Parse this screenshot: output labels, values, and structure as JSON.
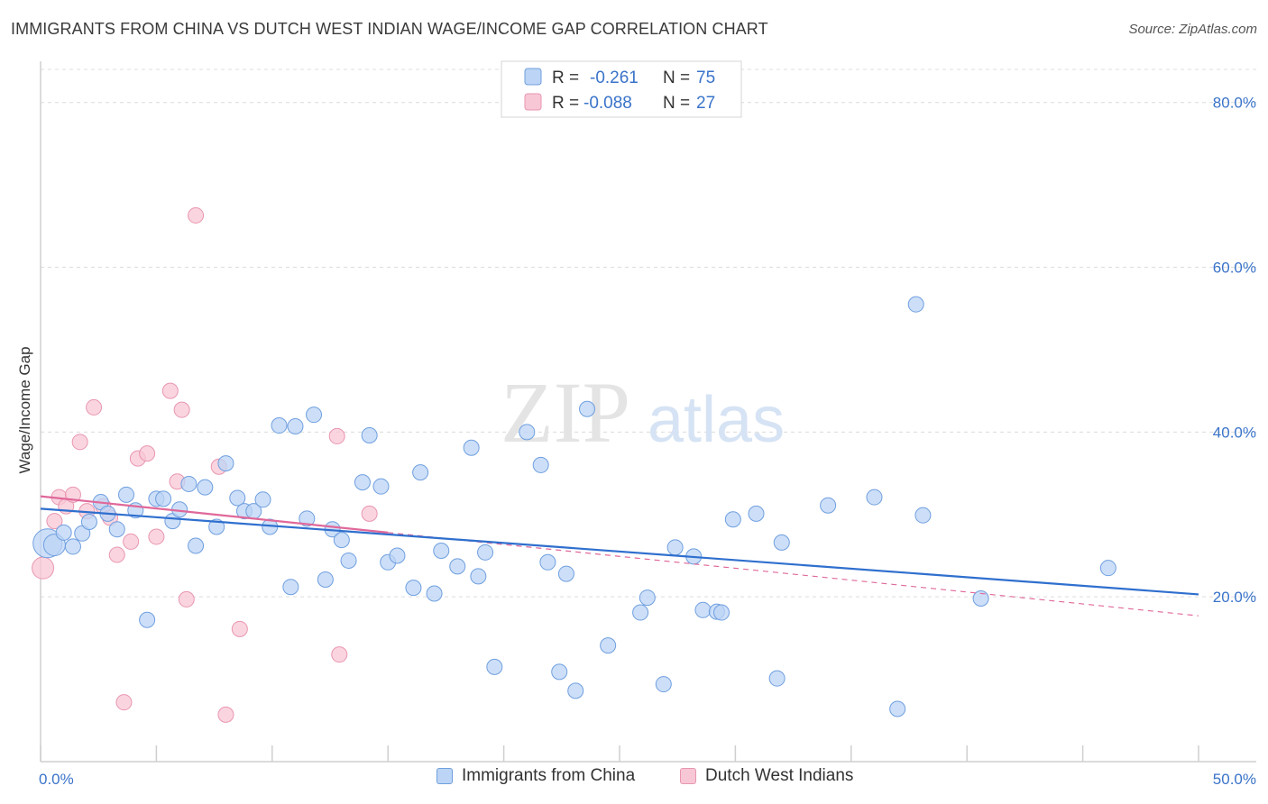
{
  "header": {
    "title": "IMMIGRANTS FROM CHINA VS DUTCH WEST INDIAN WAGE/INCOME GAP CORRELATION CHART",
    "source": "Source: ZipAtlas.com"
  },
  "watermark": {
    "zip": "ZIP",
    "atlas": "atlas"
  },
  "colors": {
    "china_fill": "#bcd4f5",
    "china_stroke": "#6f9fdf",
    "china_line": "#2f6fce",
    "dutch_fill": "#f8c7d6",
    "dutch_stroke": "#e996b0",
    "dutch_line": "#e0689a",
    "value_text": "#3a73c9",
    "grid": "#dcdcdc"
  },
  "stats": [
    {
      "r_label": "R =",
      "r_value": "-0.261",
      "n_label": "N =",
      "n_value": "75"
    },
    {
      "r_label": "R =",
      "r_value": "-0.088",
      "n_label": "N =",
      "n_value": "27"
    }
  ],
  "chart_data": {
    "type": "scatter",
    "ylabel": "Wage/Income Gap",
    "xlim": [
      0,
      50
    ],
    "ylim": [
      0,
      85
    ],
    "x_tick_labels": [
      "0.0%",
      "50.0%"
    ],
    "y_ticks": [
      20,
      40,
      60,
      80
    ],
    "y_tick_labels": [
      "20.0%",
      "40.0%",
      "60.0%",
      "80.0%"
    ],
    "grid": "horizontal dashed",
    "legend": "bottom-center",
    "series": [
      {
        "name": "Immigrants from China",
        "trend": {
          "x": [
            0,
            50
          ],
          "y": [
            30.7,
            20.3
          ]
        },
        "points": [
          {
            "x": 0.3,
            "y": 26.5,
            "s": 16
          },
          {
            "x": 0.6,
            "y": 26.3,
            "s": 12
          },
          {
            "x": 1.0,
            "y": 27.8
          },
          {
            "x": 1.4,
            "y": 26.1
          },
          {
            "x": 1.8,
            "y": 27.7
          },
          {
            "x": 2.1,
            "y": 29.1
          },
          {
            "x": 2.6,
            "y": 31.5
          },
          {
            "x": 2.9,
            "y": 30.1
          },
          {
            "x": 3.3,
            "y": 28.2
          },
          {
            "x": 3.7,
            "y": 32.4
          },
          {
            "x": 4.1,
            "y": 30.5
          },
          {
            "x": 4.6,
            "y": 17.2
          },
          {
            "x": 5.0,
            "y": 31.9
          },
          {
            "x": 5.3,
            "y": 31.9
          },
          {
            "x": 5.7,
            "y": 29.2
          },
          {
            "x": 6.0,
            "y": 30.6
          },
          {
            "x": 6.4,
            "y": 33.7
          },
          {
            "x": 6.7,
            "y": 26.2
          },
          {
            "x": 7.1,
            "y": 33.3
          },
          {
            "x": 7.6,
            "y": 28.5
          },
          {
            "x": 8.0,
            "y": 36.2
          },
          {
            "x": 8.5,
            "y": 32.0
          },
          {
            "x": 8.8,
            "y": 30.4
          },
          {
            "x": 9.2,
            "y": 30.4
          },
          {
            "x": 9.6,
            "y": 31.8
          },
          {
            "x": 9.9,
            "y": 28.5
          },
          {
            "x": 10.3,
            "y": 40.8
          },
          {
            "x": 10.8,
            "y": 21.2
          },
          {
            "x": 11.0,
            "y": 40.7
          },
          {
            "x": 11.5,
            "y": 29.5
          },
          {
            "x": 11.8,
            "y": 42.1
          },
          {
            "x": 12.3,
            "y": 22.1
          },
          {
            "x": 12.6,
            "y": 28.2
          },
          {
            "x": 13.0,
            "y": 26.9
          },
          {
            "x": 13.3,
            "y": 24.4
          },
          {
            "x": 13.9,
            "y": 33.9
          },
          {
            "x": 14.2,
            "y": 39.6
          },
          {
            "x": 14.7,
            "y": 33.4
          },
          {
            "x": 15.0,
            "y": 24.2
          },
          {
            "x": 15.4,
            "y": 25.0
          },
          {
            "x": 16.1,
            "y": 21.1
          },
          {
            "x": 16.4,
            "y": 35.1
          },
          {
            "x": 17.0,
            "y": 20.4
          },
          {
            "x": 17.3,
            "y": 25.6
          },
          {
            "x": 18.0,
            "y": 23.7
          },
          {
            "x": 18.6,
            "y": 38.1
          },
          {
            "x": 18.9,
            "y": 22.5
          },
          {
            "x": 19.2,
            "y": 25.4
          },
          {
            "x": 19.6,
            "y": 11.5
          },
          {
            "x": 21.0,
            "y": 40.0
          },
          {
            "x": 21.6,
            "y": 36.0
          },
          {
            "x": 21.9,
            "y": 24.2
          },
          {
            "x": 22.4,
            "y": 10.9
          },
          {
            "x": 22.7,
            "y": 22.8
          },
          {
            "x": 23.1,
            "y": 8.6
          },
          {
            "x": 23.6,
            "y": 42.8
          },
          {
            "x": 24.5,
            "y": 14.1
          },
          {
            "x": 25.9,
            "y": 18.1
          },
          {
            "x": 26.2,
            "y": 19.9
          },
          {
            "x": 26.9,
            "y": 9.4
          },
          {
            "x": 27.4,
            "y": 26.0
          },
          {
            "x": 28.2,
            "y": 24.9
          },
          {
            "x": 28.6,
            "y": 18.4
          },
          {
            "x": 29.2,
            "y": 18.2
          },
          {
            "x": 29.4,
            "y": 18.1
          },
          {
            "x": 29.9,
            "y": 29.4
          },
          {
            "x": 30.9,
            "y": 30.1
          },
          {
            "x": 31.8,
            "y": 10.1
          },
          {
            "x": 32.0,
            "y": 26.6
          },
          {
            "x": 34.0,
            "y": 31.1
          },
          {
            "x": 36.0,
            "y": 32.1
          },
          {
            "x": 37.0,
            "y": 6.4
          },
          {
            "x": 37.8,
            "y": 55.5
          },
          {
            "x": 38.1,
            "y": 29.9
          },
          {
            "x": 40.6,
            "y": 19.8
          },
          {
            "x": 46.1,
            "y": 23.5
          }
        ]
      },
      {
        "name": "Dutch West Indians",
        "trend": {
          "x": [
            0,
            15
          ],
          "y": [
            32.2,
            27.8
          ]
        },
        "trend_ext": {
          "x": [
            15,
            50
          ],
          "y": [
            27.8,
            17.7
          ]
        },
        "points": [
          {
            "x": 0.1,
            "y": 23.5,
            "s": 12
          },
          {
            "x": 0.6,
            "y": 29.2
          },
          {
            "x": 0.8,
            "y": 32.1
          },
          {
            "x": 1.1,
            "y": 31.0
          },
          {
            "x": 1.4,
            "y": 32.4
          },
          {
            "x": 1.7,
            "y": 38.8
          },
          {
            "x": 2.0,
            "y": 30.4
          },
          {
            "x": 2.3,
            "y": 43.0
          },
          {
            "x": 2.7,
            "y": 31.0
          },
          {
            "x": 3.0,
            "y": 29.6
          },
          {
            "x": 3.3,
            "y": 25.1
          },
          {
            "x": 3.6,
            "y": 7.2
          },
          {
            "x": 3.9,
            "y": 26.7
          },
          {
            "x": 4.2,
            "y": 36.8
          },
          {
            "x": 4.6,
            "y": 37.4
          },
          {
            "x": 5.0,
            "y": 27.3
          },
          {
            "x": 5.6,
            "y": 45.0
          },
          {
            "x": 5.9,
            "y": 34.0
          },
          {
            "x": 6.1,
            "y": 42.7
          },
          {
            "x": 6.3,
            "y": 19.7
          },
          {
            "x": 6.7,
            "y": 66.3
          },
          {
            "x": 7.7,
            "y": 35.8
          },
          {
            "x": 8.0,
            "y": 5.7
          },
          {
            "x": 8.6,
            "y": 16.1
          },
          {
            "x": 12.8,
            "y": 39.5
          },
          {
            "x": 12.9,
            "y": 13.0
          },
          {
            "x": 14.2,
            "y": 30.1
          }
        ]
      }
    ]
  }
}
